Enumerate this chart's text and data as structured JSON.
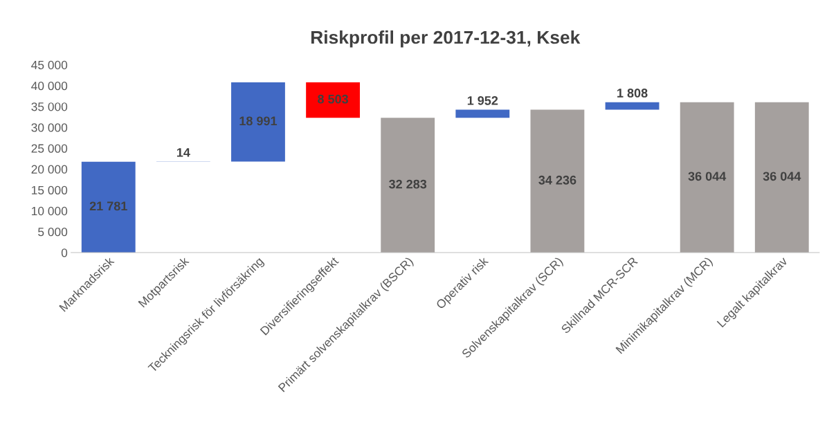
{
  "chart_data": {
    "type": "bar",
    "title": "Riskprofil per 2017-12-31, Ksek",
    "categories": [
      "Marknadsrisk",
      "Motpartsrisk",
      "Teckningsrisk för livförsäkring",
      "Diversifieringseffekt",
      "Primärt solvenskapitalkrav (BSCR)",
      "Operativ risk",
      "Solvenskapitalkrav (SCR)",
      "Skillnad MCR-SCR",
      "Minimikapitalkrav (MCR)",
      "Legalt kapitalkrav"
    ],
    "values": [
      21781,
      14,
      18991,
      8503,
      32283,
      1952,
      34236,
      1808,
      36044,
      36044
    ],
    "base": [
      0,
      21781,
      21795,
      32283,
      0,
      32283,
      0,
      34236,
      0,
      0
    ],
    "colors": [
      "#4169c4",
      "#4169c4",
      "#4169c4",
      "#ff0000",
      "#a5a09e",
      "#4169c4",
      "#a5a09e",
      "#4169c4",
      "#a5a09e",
      "#a5a09e"
    ],
    "value_labels": [
      "21 781",
      "14",
      "18 991",
      "8 503",
      "32 283",
      "1 952",
      "34 236",
      "1 808",
      "36 044",
      "36 044"
    ],
    "ylim": [
      0,
      45000
    ],
    "yticks": [
      {
        "value": 0,
        "label": "0"
      },
      {
        "value": 5000,
        "label": "5 000"
      },
      {
        "value": 10000,
        "label": "10 000"
      },
      {
        "value": 15000,
        "label": "15 000"
      },
      {
        "value": 20000,
        "label": "20 000"
      },
      {
        "value": 25000,
        "label": "25 000"
      },
      {
        "value": 30000,
        "label": "30 000"
      },
      {
        "value": 35000,
        "label": "35 000"
      },
      {
        "value": 40000,
        "label": "40 000"
      },
      {
        "value": 45000,
        "label": "45 000"
      }
    ],
    "grid": false,
    "legend": false
  }
}
